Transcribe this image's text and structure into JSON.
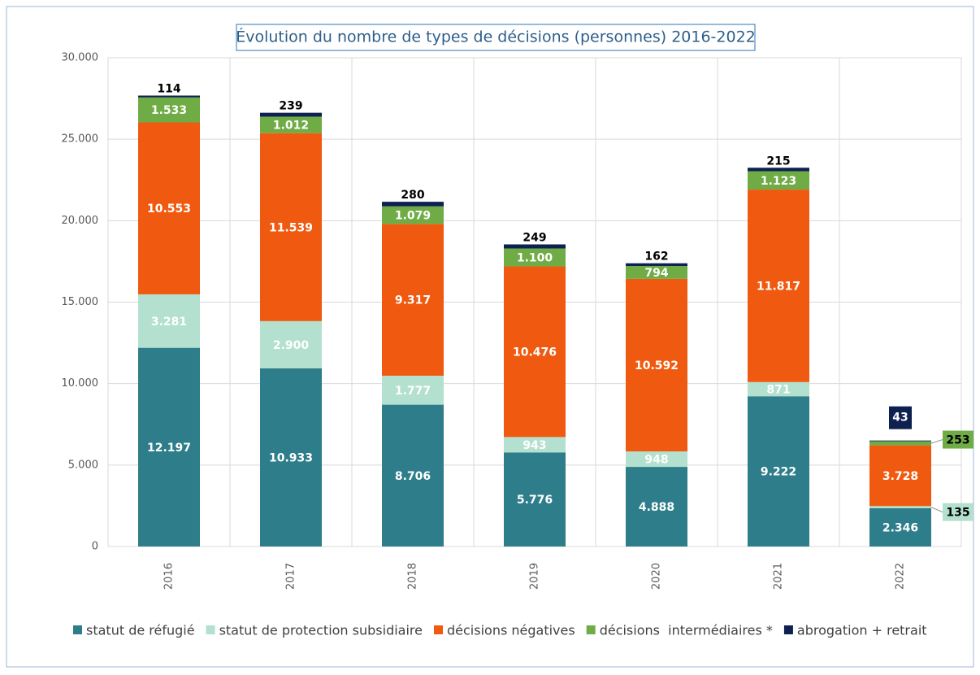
{
  "chart_data": {
    "type": "stacked_bar",
    "title": "Évolution du nombre de types de décisions (personnes) 2016-2022",
    "categories": [
      "2016",
      "2017",
      "2018",
      "2019",
      "2020",
      "2021",
      "2022"
    ],
    "series": [
      {
        "name": "statut de réfugié",
        "color": "#2e7d8a",
        "values": [
          12197,
          10933,
          8706,
          5776,
          4888,
          9222,
          2346
        ],
        "value_labels": [
          "12.197",
          "10.933",
          "8.706",
          "5.776",
          "4.888",
          "9.222",
          "2.346"
        ]
      },
      {
        "name": "statut de protection subsidiaire",
        "color": "#b3e0cf",
        "values": [
          3281,
          2900,
          1777,
          943,
          948,
          871,
          135
        ],
        "value_labels": [
          "3.281",
          "2.900",
          "1.777",
          "943",
          "948",
          "871",
          "135"
        ]
      },
      {
        "name": "décisions négatives",
        "color": "#f05a10",
        "values": [
          10553,
          11539,
          9317,
          10476,
          10592,
          11817,
          3728
        ],
        "value_labels": [
          "10.553",
          "11.539",
          "9.317",
          "10.476",
          "10.592",
          "11.817",
          "3.728"
        ]
      },
      {
        "name": "décisions  intermédiaires *",
        "color": "#6fac46",
        "values": [
          1533,
          1012,
          1079,
          1100,
          794,
          1123,
          253
        ],
        "value_labels": [
          "1.533",
          "1.012",
          "1.079",
          "1.100",
          "794",
          "1.123",
          "253"
        ]
      },
      {
        "name": "abrogation + retrait",
        "color": "#0d2050",
        "values": [
          114,
          239,
          280,
          249,
          162,
          215,
          43
        ],
        "value_labels": [
          "114",
          "239",
          "280",
          "249",
          "162",
          "215",
          "43"
        ]
      }
    ],
    "ylim": [
      0,
      30000
    ],
    "yticks": [
      0,
      {
        "value": 5000,
        "label": "5.000"
      },
      {
        "value": 10000,
        "label": "10.000"
      },
      {
        "value": 15000,
        "label": "15.000"
      },
      {
        "value": 20000,
        "label": "20.000"
      },
      {
        "value": 25000,
        "label": "25.000"
      },
      {
        "value": 30000,
        "label": "30.000"
      }
    ],
    "grid": true,
    "legend": "bottom"
  }
}
